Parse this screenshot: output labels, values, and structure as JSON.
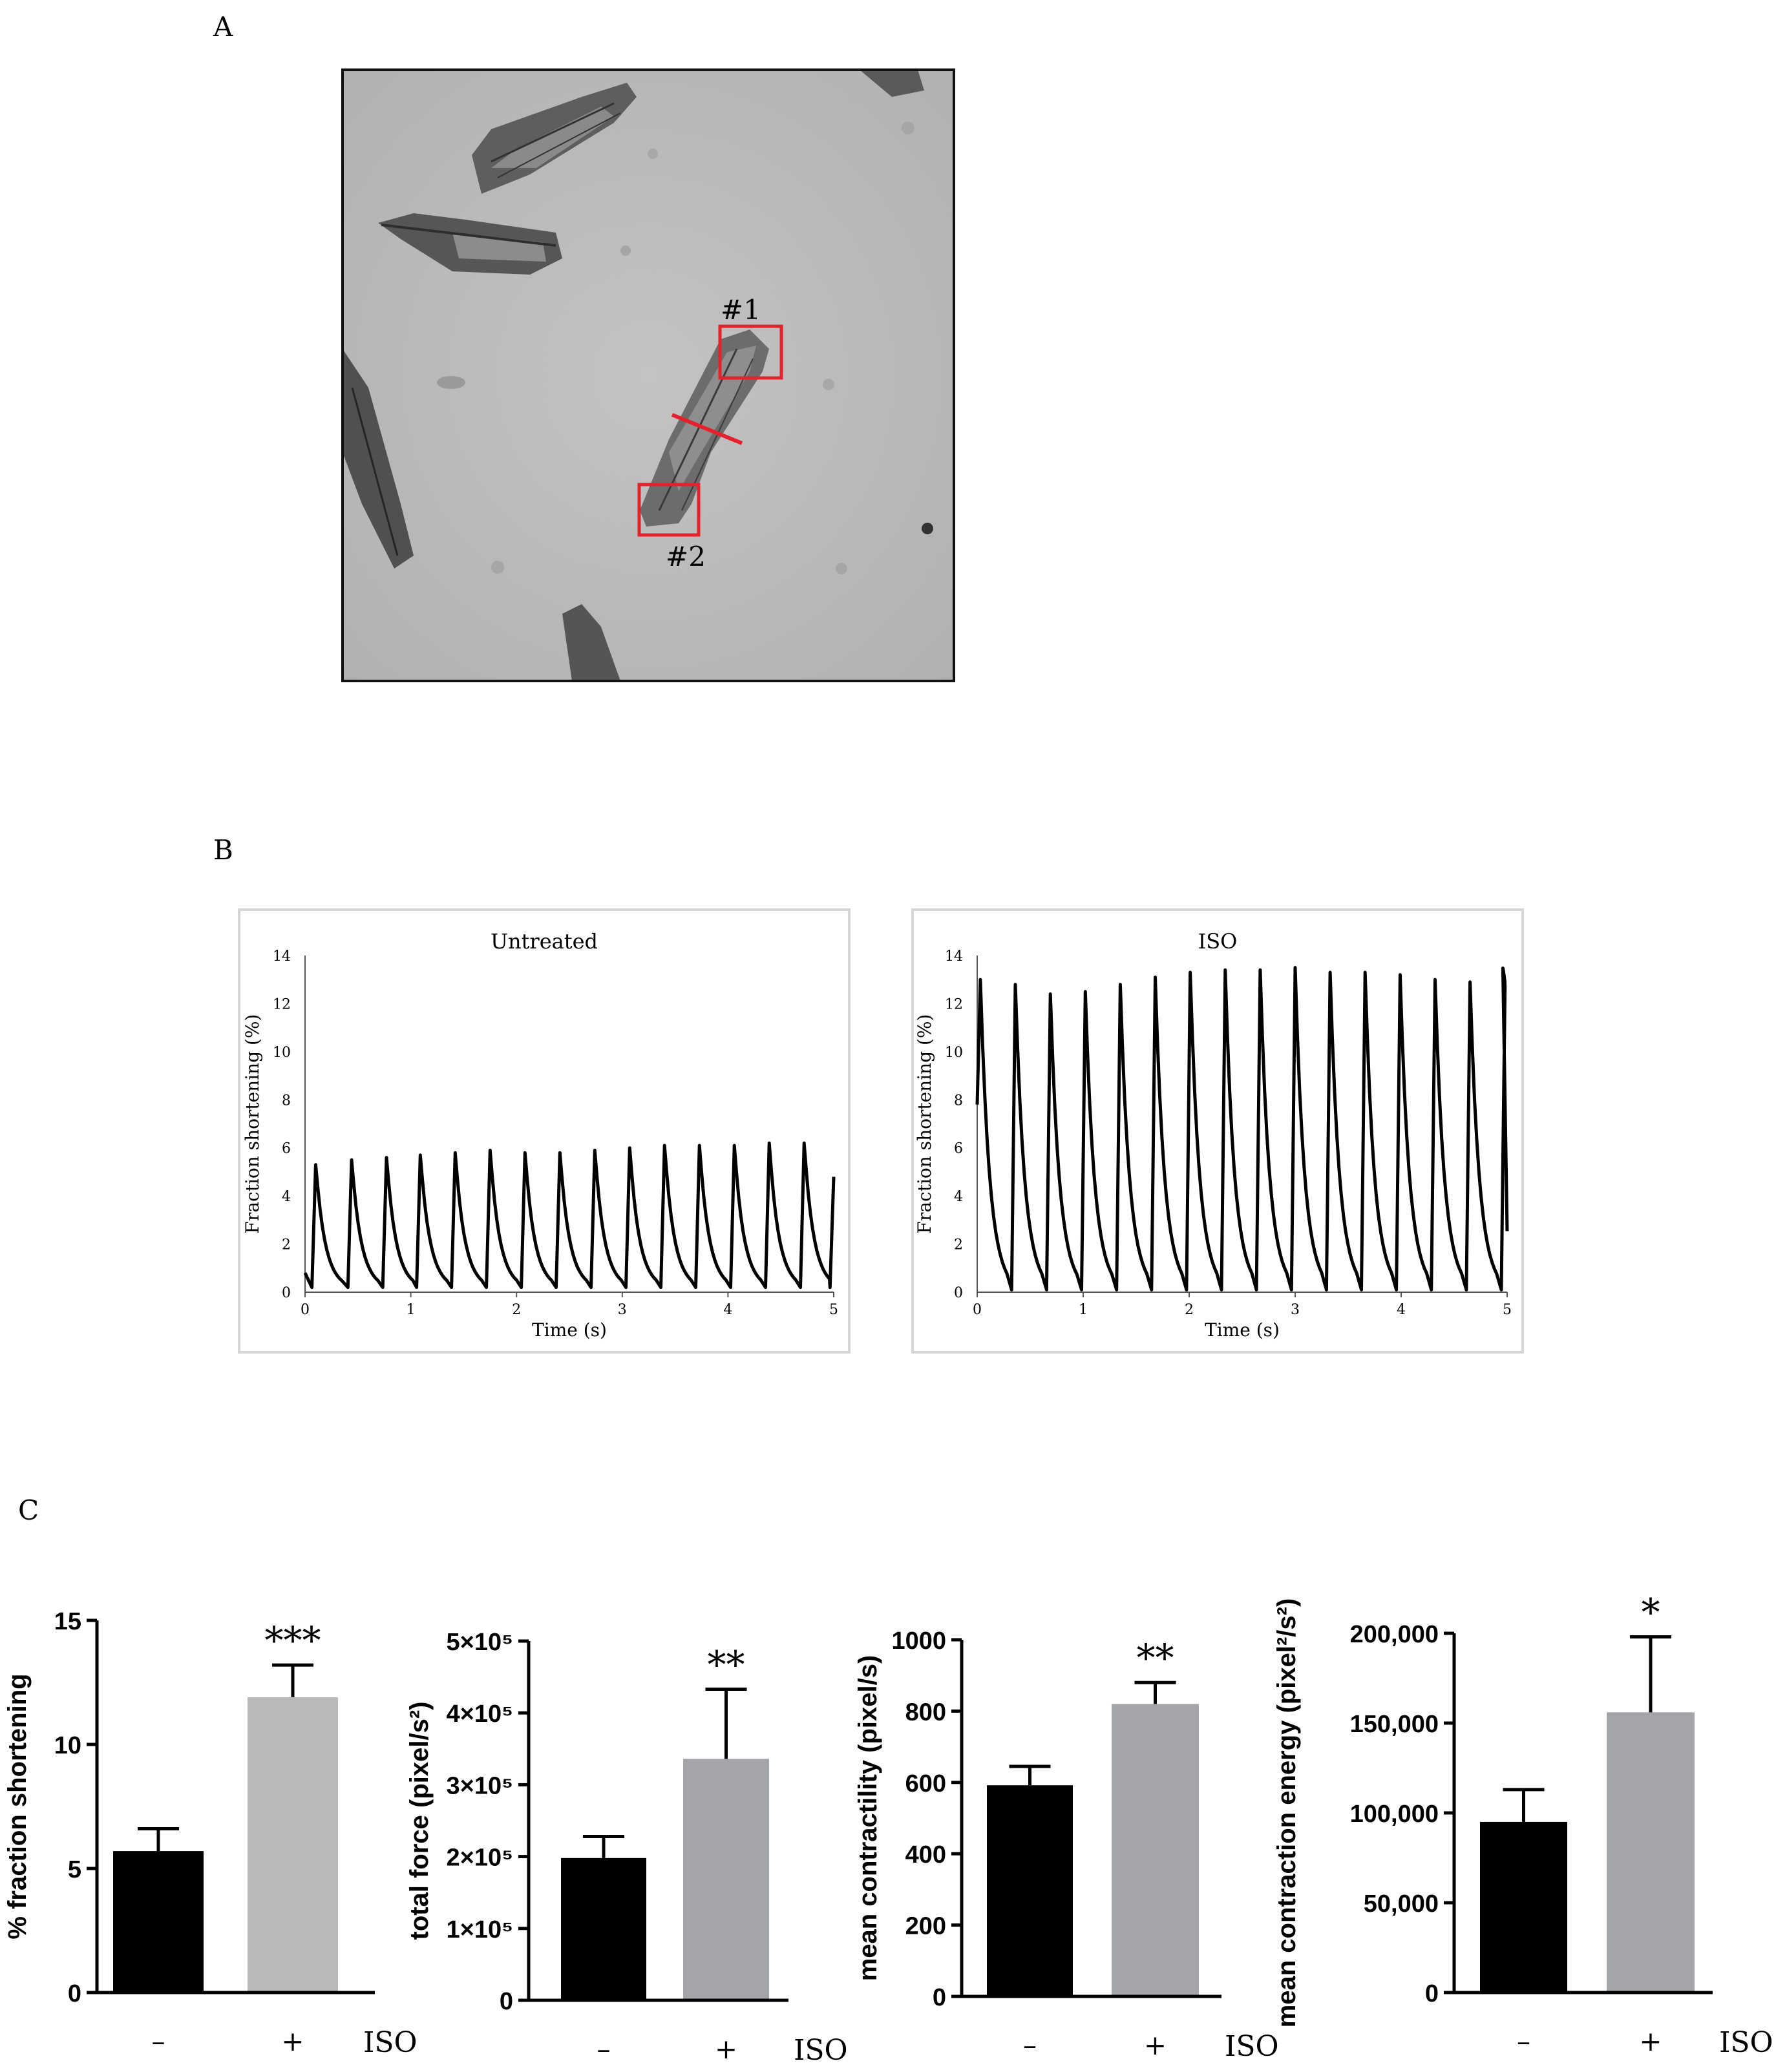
{
  "colors": {
    "control_bar": "#000000",
    "iso_bar_shortening": "#b9b9b9",
    "iso_bar": "#a4a5a9",
    "roi_box": "#e5222b",
    "trace": "#000000",
    "micrograph_bg": "#bcbcbc"
  },
  "panel_labels": {
    "a": "A",
    "b": "B",
    "c": "C"
  },
  "micrograph": {
    "roi_1": "#1",
    "roi_2": "#2"
  },
  "chart_data": [
    {
      "id": "trace_untreated",
      "type": "line",
      "title": "Untreated",
      "xlabel": "Time (s)",
      "ylabel": "Fraction shortening (%)",
      "xlim": [
        0,
        5
      ],
      "ylim": [
        0,
        14
      ],
      "xticks": [
        "0",
        "1",
        "2",
        "3",
        "4",
        "5"
      ],
      "yticks": [
        "0",
        "2",
        "4",
        "6",
        "8",
        "10",
        "12",
        "14"
      ],
      "peak_times": [
        0.1,
        0.44,
        0.77,
        1.09,
        1.42,
        1.75,
        2.08,
        2.41,
        2.74,
        3.07,
        3.4,
        3.73,
        4.06,
        4.39,
        4.72,
        5.0
      ],
      "peak_values": [
        5.3,
        5.5,
        5.6,
        5.7,
        5.8,
        5.9,
        5.8,
        5.8,
        5.9,
        6.0,
        6.1,
        6.1,
        6.1,
        6.2,
        6.2,
        4.8
      ],
      "baseline": 0.2
    },
    {
      "id": "trace_iso",
      "type": "line",
      "title": "ISO",
      "xlabel": "Time (s)",
      "ylabel": "Fraction shortening (%)",
      "xlim": [
        0,
        5
      ],
      "ylim": [
        0,
        14
      ],
      "xticks": [
        "0",
        "1",
        "2",
        "3",
        "4",
        "5"
      ],
      "yticks": [
        "0",
        "2",
        "4",
        "6",
        "8",
        "10",
        "12",
        "14"
      ],
      "peak_times": [
        0.03,
        0.36,
        0.69,
        1.02,
        1.35,
        1.68,
        2.01,
        2.34,
        2.67,
        3.0,
        3.33,
        3.66,
        3.99,
        4.32,
        4.65,
        4.98
      ],
      "peak_values": [
        13.0,
        12.8,
        12.4,
        12.5,
        12.8,
        13.1,
        13.3,
        13.4,
        13.4,
        13.5,
        13.3,
        13.3,
        13.2,
        13.0,
        12.9,
        12.7
      ],
      "baseline": 0.1
    },
    {
      "id": "bar_shortening",
      "type": "bar",
      "ylabel": "% fraction shortening",
      "ylim": [
        0,
        15
      ],
      "yticks": [
        "0",
        "5",
        "10",
        "15"
      ],
      "categories": [
        "–",
        "+"
      ],
      "values": [
        5.7,
        11.9
      ],
      "errors": [
        0.9,
        1.3
      ],
      "significance": "***",
      "group_label": "ISO"
    },
    {
      "id": "bar_total_force",
      "type": "bar",
      "ylabel": "total force (pixel/s²)",
      "ylim": [
        0,
        500000
      ],
      "yticks": [
        "0",
        "1×10⁵",
        "2×10⁵",
        "3×10⁵",
        "4×10⁵",
        "5×10⁵"
      ],
      "categories": [
        "–",
        "+"
      ],
      "values": [
        198000,
        336000
      ],
      "errors": [
        30000,
        97000
      ],
      "significance": "**",
      "group_label": "ISO"
    },
    {
      "id": "bar_contractility",
      "type": "bar",
      "ylabel": "mean contractility (pixel/s)",
      "ylim": [
        0,
        1000
      ],
      "yticks": [
        "0",
        "200",
        "400",
        "600",
        "800",
        "1000"
      ],
      "categories": [
        "–",
        "+"
      ],
      "values": [
        592,
        820
      ],
      "errors": [
        53,
        60
      ],
      "significance": "**",
      "group_label": "ISO"
    },
    {
      "id": "bar_contraction_energy",
      "type": "bar",
      "ylabel": "mean contraction energy (pixel²/s²)",
      "ylim": [
        0,
        200000
      ],
      "yticks": [
        "0",
        "50,000",
        "100,000",
        "150,000",
        "200,000"
      ],
      "categories": [
        "–",
        "+"
      ],
      "values": [
        95000,
        156000
      ],
      "errors": [
        18000,
        42000
      ],
      "significance": "*",
      "group_label": "ISO"
    }
  ]
}
